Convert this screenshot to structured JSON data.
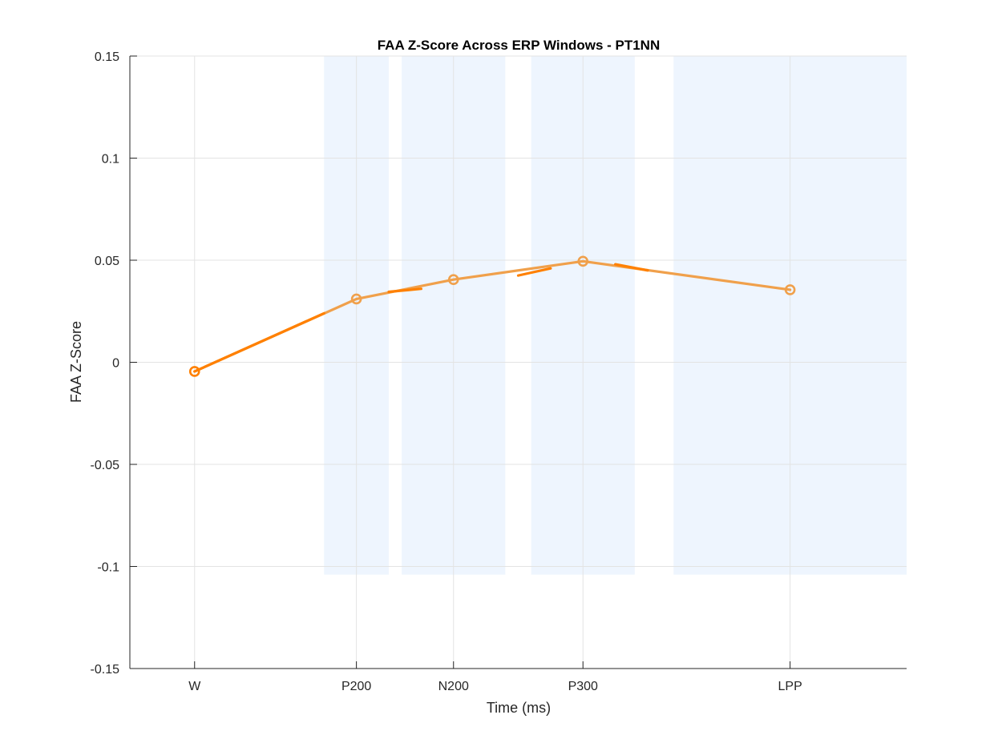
{
  "chart_data": {
    "type": "line",
    "title": "FAA Z-Score Across ERP Windows - PT1NN",
    "xlabel": "Time (ms)",
    "ylabel": "FAA Z-Score",
    "categories": [
      "W",
      "P200",
      "N200",
      "P300",
      "LPP"
    ],
    "x_positions": [
      0,
      250,
      400,
      600,
      920
    ],
    "xlim": [
      -100,
      1100
    ],
    "ylim": [
      -0.15,
      0.15
    ],
    "yticks": [
      -0.15,
      -0.1,
      -0.05,
      0,
      0.05,
      0.1,
      0.15
    ],
    "ytick_labels": [
      "-0.15",
      "-0.1",
      "-0.05",
      "0",
      "0.05",
      "0.1",
      "0.15"
    ],
    "grid": true,
    "series": [
      {
        "values": [
          -0.0045,
          0.031,
          0.0405,
          0.0495,
          0.0355
        ],
        "color": "#F0A04B",
        "marker": "circle"
      }
    ],
    "segment_highlights": [
      {
        "from": [
          0,
          -0.0045
        ],
        "to": [
          200,
          0.024
        ],
        "color": "#FF8000"
      },
      {
        "from": [
          300,
          0.0345
        ],
        "to": [
          350,
          0.036
        ],
        "color": "#FF8000"
      },
      {
        "from": [
          500,
          0.0425
        ],
        "to": [
          550,
          0.046
        ],
        "color": "#FF8000"
      },
      {
        "from": [
          650,
          0.048
        ],
        "to": [
          700,
          0.045
        ],
        "color": "#FF8000"
      }
    ],
    "shaded_windows": [
      {
        "from": 200,
        "to": 300
      },
      {
        "from": 320,
        "to": 480
      },
      {
        "from": 520,
        "to": 680
      },
      {
        "from": 740,
        "to": 1100
      }
    ],
    "shade_ylim": [
      -0.15,
      -0.104
    ],
    "shade_top": 0.15,
    "shade_color": "#EEF5FE",
    "grid_color": "#E3E3E3",
    "axis_color": "#262626"
  }
}
